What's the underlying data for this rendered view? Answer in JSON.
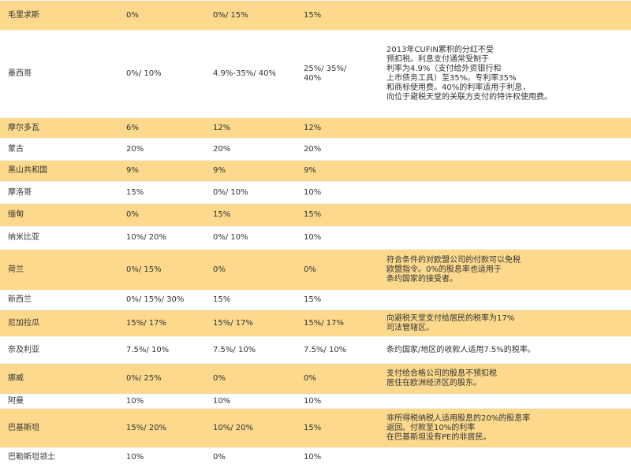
{
  "table": {
    "rows": [
      [
        "毛里求斯",
        "0%",
        "0%/ 15%",
        "15%"
      ],
      [
        "墨西哥",
        "0%/ 10%",
        "4.9%-35%/ 40%",
        [
          "25%/ 35%/",
          "40%"
        ],
        [
          "2013年CUFIN累积的分红不受",
          "预扣税。利息支付通常受制于",
          "利率为4.9%（支付给外资银行和",
          "上市债务工具）至35%。专利率35%",
          "和商标使用费。40%的利率适用于利息，",
          "向位于避税天堂的关联方支付的特许权使用费。"
        ]
      ],
      [
        "摩尔多瓦",
        "6%",
        "12%",
        "12%"
      ],
      [
        "蒙古",
        "20%",
        "20%",
        "20%"
      ],
      [
        "黑山共和国",
        "9%",
        "9%",
        "9%"
      ],
      [
        "摩洛哥",
        "15%",
        "0%/ 10%",
        "10%"
      ],
      [
        "缅甸",
        "0%",
        "15%",
        "15%"
      ],
      [
        "纳米比亚",
        "10%/ 20%",
        "0%/ 10%",
        "10%"
      ],
      [
        "荷兰",
        "0%/ 15%",
        "0%",
        "0%",
        [
          "符合条件的对欧盟公司的付款可以免税",
          "欧盟指令。0%的股息率也适用于",
          "条约国家的接受者。"
        ]
      ],
      [
        "新西兰",
        "0%/ 15%/ 30%",
        "15%",
        "15%"
      ],
      [
        "尼加拉瓜",
        "15%/ 17%",
        "15%/ 17%",
        "15%/ 17%",
        [
          "向避税天堂支付给居民的税率为17%",
          "司法管辖区。"
        ]
      ],
      [
        "奈及利亚",
        "7.5%/ 10%",
        "7.5%/ 10%",
        "7.5%/ 10%",
        [
          "条约国家/地区的收款人适用7.5%的税率。"
        ]
      ],
      [
        "挪威",
        "0%/ 25%",
        "0%",
        "0%",
        [
          "支付给合格公司的股息不预扣税",
          "居住在欧洲经济区的股东。"
        ]
      ],
      [
        "阿曼",
        "10%",
        "10%",
        "10%"
      ],
      [
        "巴基斯坦",
        "15%/ 20%",
        "10%/ 20%",
        "15%",
        [
          "非所得税纳税人适用股息的20%的股息率",
          "返回。付款至10%的利率",
          "在巴基斯坦没有PE的非居民。"
        ]
      ],
      [
        "巴勒斯坦领土",
        "10%",
        "0%",
        "10%"
      ]
    ]
  }
}
